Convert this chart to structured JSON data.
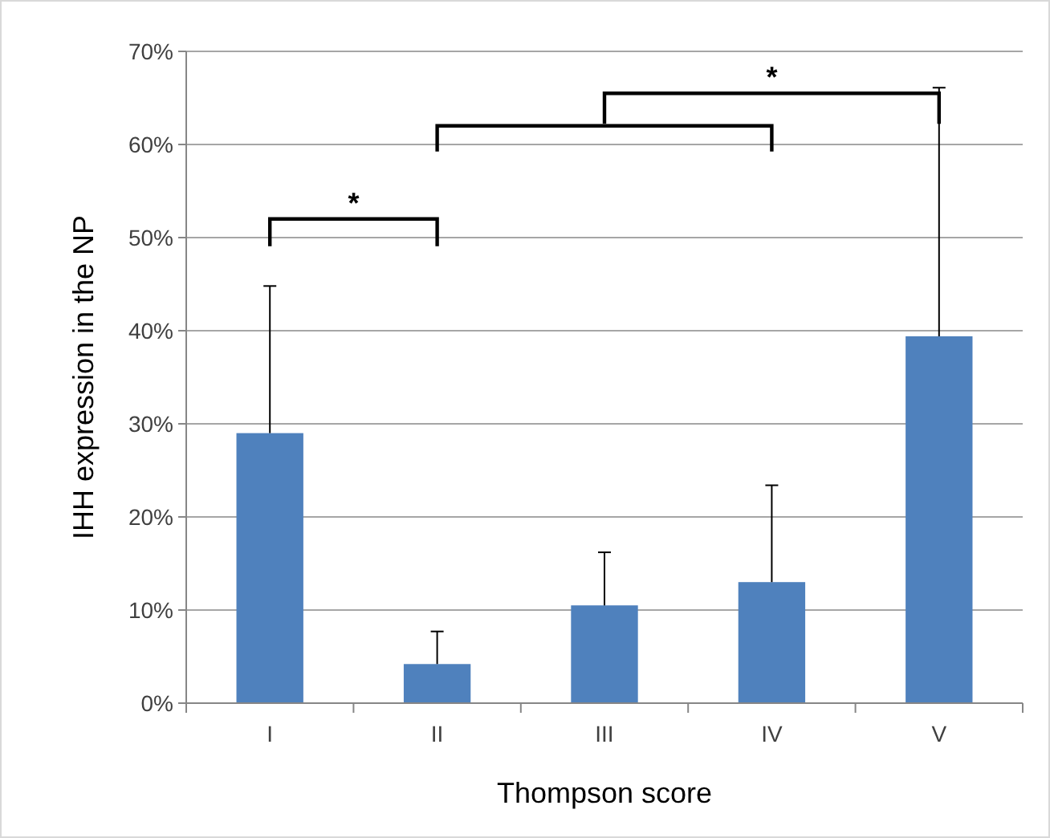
{
  "chart_data": {
    "type": "bar",
    "xlabel": "Thompson score",
    "ylabel": "IHH expression in the NP",
    "categories": [
      "I",
      "II",
      "III",
      "IV",
      "V"
    ],
    "values": [
      29.0,
      4.2,
      10.5,
      13.0,
      39.4
    ],
    "errors": [
      [
        29.0,
        44.8
      ],
      [
        4.2,
        7.7
      ],
      [
        10.5,
        16.2
      ],
      [
        13.0,
        23.4
      ],
      [
        39.4,
        66.1
      ]
    ],
    "color": "#4f81bd",
    "ylim": [
      0,
      70
    ],
    "yticks": [
      {
        "value": 0,
        "label": "0%"
      },
      {
        "value": 10,
        "label": "10%"
      },
      {
        "value": 20,
        "label": "20%"
      },
      {
        "value": 30,
        "label": "30%"
      },
      {
        "value": 40,
        "label": "40%"
      },
      {
        "value": 50,
        "label": "50%"
      },
      {
        "value": 60,
        "label": "60%"
      },
      {
        "value": 70,
        "label": "70%"
      }
    ],
    "grid": "y",
    "annotations": [
      "*",
      "*"
    ]
  }
}
